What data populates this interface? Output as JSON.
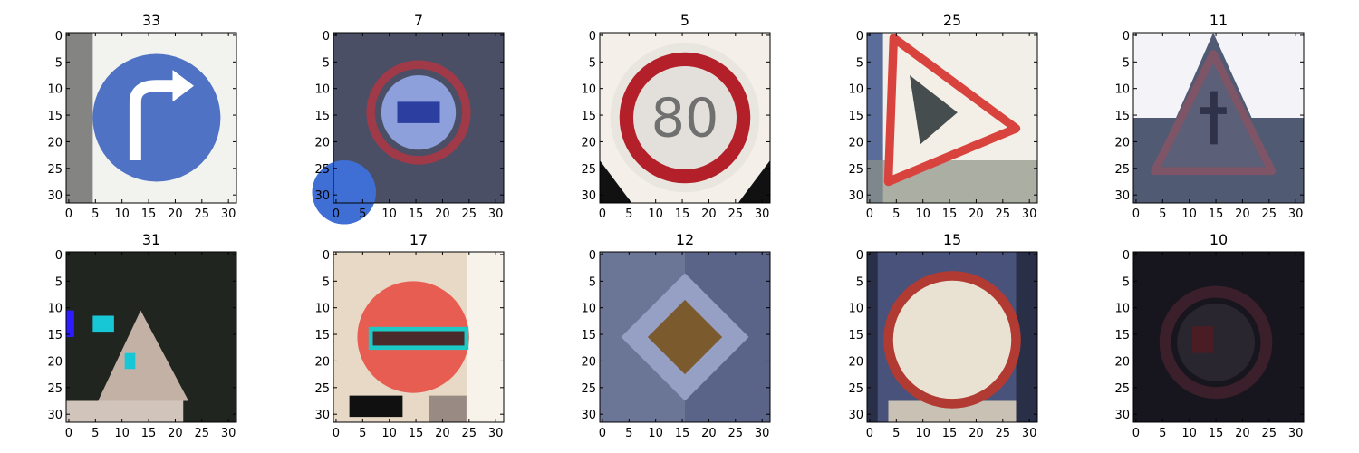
{
  "panels": [
    {
      "title": "33",
      "sign": "blue-turn-right",
      "colors": {
        "bg": "#f2f2ef",
        "main": "#4f72c4",
        "accent": "#ffffff"
      }
    },
    {
      "title": "7",
      "sign": "red-circle-truck",
      "colors": {
        "bg": "#4a4f66",
        "main": "#a03a48",
        "accent": "#8da0dc"
      }
    },
    {
      "title": "5",
      "sign": "red-circle-80",
      "colors": {
        "bg": "#f4efe8",
        "main": "#b3202a",
        "accent": "#707070"
      }
    },
    {
      "title": "25",
      "sign": "triangle-roadwork",
      "colors": {
        "bg": "#f1efe7",
        "main": "#d9433e",
        "accent": "#263032"
      }
    },
    {
      "title": "11",
      "sign": "triangle-intersection",
      "colors": {
        "bg": "#515a73",
        "main": "#7d5566",
        "accent": "#2f3248"
      }
    },
    {
      "title": "31",
      "sign": "triangle-animal",
      "colors": {
        "bg": "#20261f",
        "main": "#c4b1a6",
        "accent": "#18c7d6"
      }
    },
    {
      "title": "17",
      "sign": "no-entry",
      "colors": {
        "bg": "#e8d9c6",
        "main": "#e85d52",
        "accent": "#1cc9c4"
      }
    },
    {
      "title": "12",
      "sign": "priority-road",
      "colors": {
        "bg": "#6b7596",
        "main": "#7b5a2d",
        "accent": "#96a0c5"
      }
    },
    {
      "title": "15",
      "sign": "no-vehicles",
      "colors": {
        "bg": "#48527a",
        "main": "#b13b33",
        "accent": "#e9e2d2"
      }
    },
    {
      "title": "10",
      "sign": "no-passing-trucks",
      "colors": {
        "bg": "#17161f",
        "main": "#3b1f2a",
        "accent": "#2a2630"
      }
    }
  ],
  "xticks": [
    "0",
    "5",
    "10",
    "15",
    "20",
    "25",
    "30"
  ],
  "yticks": [
    "0",
    "5",
    "10",
    "15",
    "20",
    "25",
    "30"
  ]
}
